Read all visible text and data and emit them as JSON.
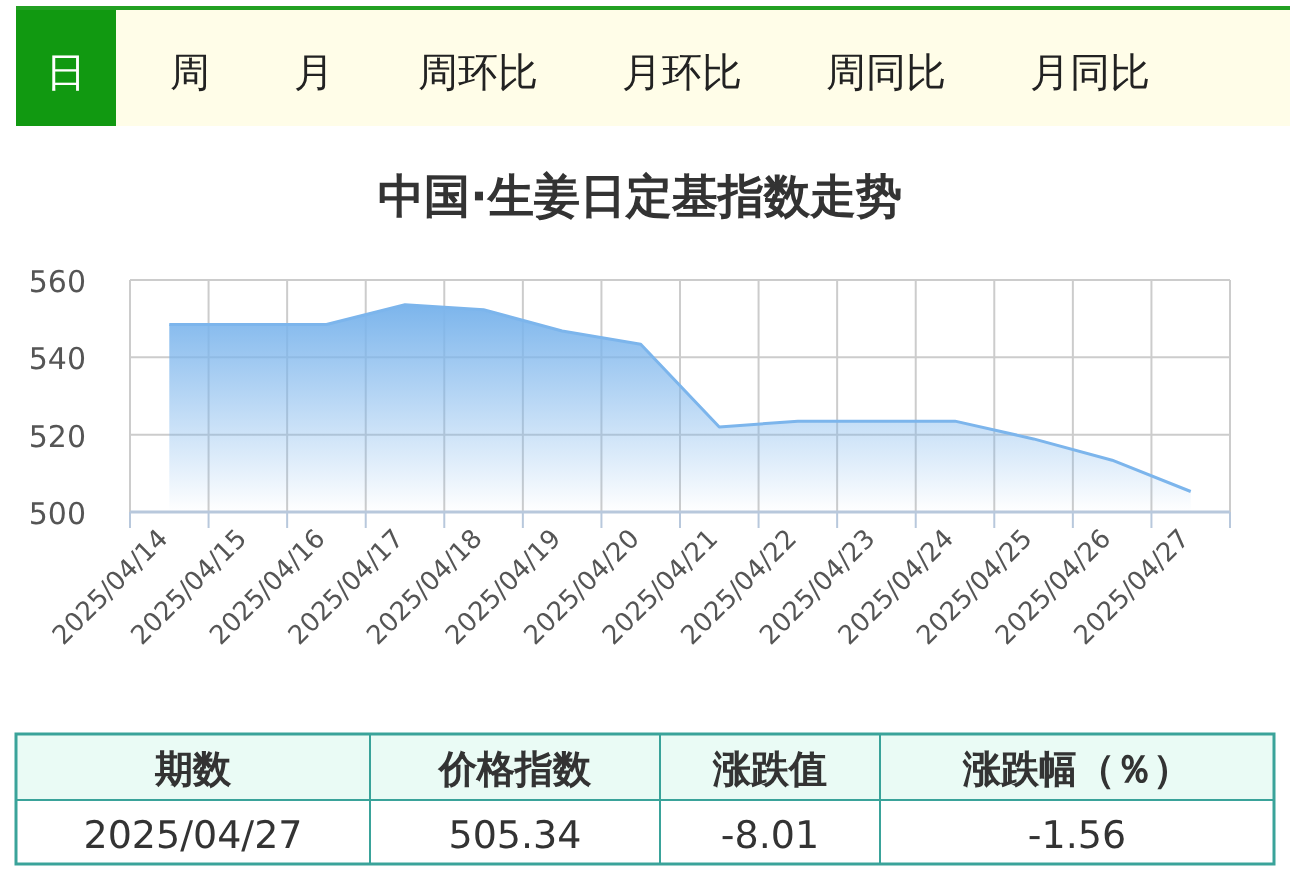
{
  "chart_data": [
    {
      "type": "other",
      "annotations": [
        "日",
        "周",
        "月",
        "周环比",
        "月环比",
        "周同比",
        "月同比"
      ]
    },
    {
      "type": "area",
      "title": "中国·生姜日定基指数走势",
      "categories": [
        "2025/04/14",
        "2025/04/15",
        "2025/04/16",
        "2025/04/17",
        "2025/04/18",
        "2025/04/19",
        "2025/04/20",
        "2025/04/21",
        "2025/04/22",
        "2025/04/23",
        "2025/04/24",
        "2025/04/25",
        "2025/04/26",
        "2025/04/27"
      ],
      "series": [
        {
          "color": "#7cb5ec",
          "values": [
            548.5,
            548.5,
            548.5,
            553.6,
            552.3,
            546.8,
            543.4,
            522.0,
            523.5,
            523.5,
            523.5,
            518.9,
            513.4,
            505.3
          ]
        }
      ],
      "ylim": [
        500,
        560
      ],
      "yticks": [
        500,
        520,
        540,
        560
      ],
      "grid": true
    },
    {
      "type": "other",
      "annotations": [
        "期数",
        "价格指数",
        "涨跌值",
        "涨跌幅（％）",
        "2025/04/27",
        "505.34",
        "-8.01",
        "-1.56"
      ]
    }
  ]
}
